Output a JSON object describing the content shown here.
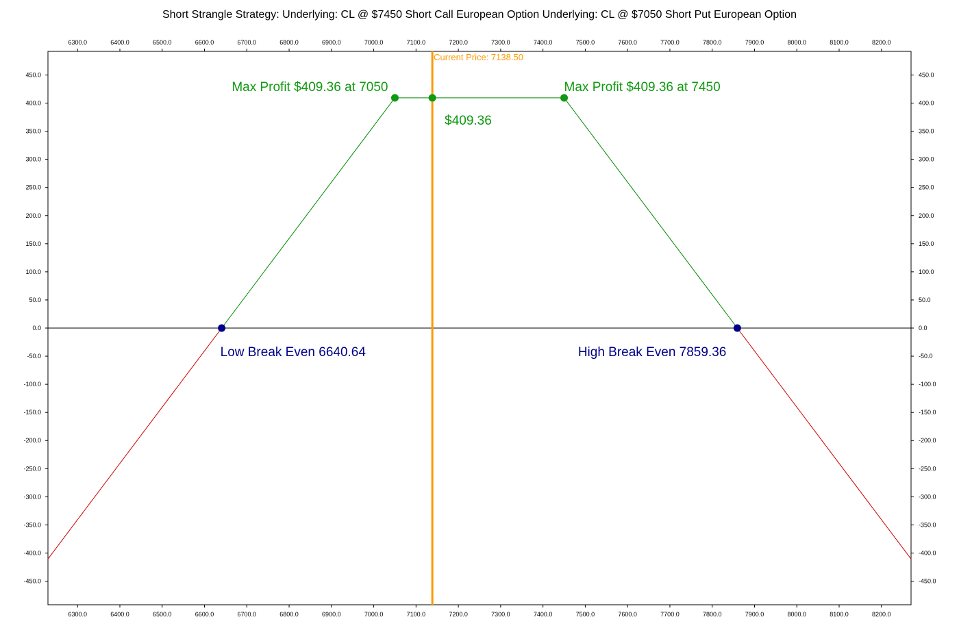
{
  "chart_data": {
    "type": "line",
    "title": "Short Strangle Strategy:   Underlying: CL @ $7450 Short Call European Option  Underlying: CL @ $7050 Short Put European Option",
    "xlabel": "",
    "ylabel": "",
    "xlim": [
      6230,
      8270
    ],
    "ylim": [
      -492,
      492
    ],
    "x_ticks": [
      6300,
      6400,
      6500,
      6600,
      6700,
      6800,
      6900,
      7000,
      7100,
      7200,
      7300,
      7400,
      7500,
      7600,
      7700,
      7800,
      7900,
      8000,
      8100,
      8200
    ],
    "x_tick_labels": [
      "6300.0",
      "6400.0",
      "6500.0",
      "6600.0",
      "6700.0",
      "6800.0",
      "6900.0",
      "7000.0",
      "7100.0",
      "7200.0",
      "7300.0",
      "7400.0",
      "7500.0",
      "7600.0",
      "7700.0",
      "7800.0",
      "7900.0",
      "8000.0",
      "8100.0",
      "8200.0"
    ],
    "y_ticks": [
      450,
      400,
      350,
      300,
      250,
      200,
      150,
      100,
      50,
      0,
      -50,
      -100,
      -150,
      -200,
      -250,
      -300,
      -350,
      -400,
      -450
    ],
    "y_tick_labels": [
      "450.0",
      "400.0",
      "350.0",
      "300.0",
      "250.0",
      "200.0",
      "150.0",
      "100.0",
      "50.0",
      "0.0",
      "-50.0",
      "-100.0",
      "-150.0",
      "-200.0",
      "-250.0",
      "-300.0",
      "-350.0",
      "-400.0",
      "-450.0"
    ],
    "grid": false,
    "series": [
      {
        "color": "#cc0000",
        "points": [
          [
            6230,
            -410.64
          ],
          [
            6640.64,
            0
          ]
        ]
      },
      {
        "color": "#008800",
        "points": [
          [
            6640.64,
            0
          ],
          [
            7050,
            409.36
          ],
          [
            7450,
            409.36
          ],
          [
            7859.36,
            0
          ]
        ]
      },
      {
        "color": "#cc0000",
        "points": [
          [
            7859.36,
            0
          ],
          [
            8270,
            -410.64
          ]
        ]
      }
    ],
    "markers": [
      {
        "x": 7050,
        "y": 409.36,
        "color": "#119911"
      },
      {
        "x": 7138.5,
        "y": 409.36,
        "color": "#119911"
      },
      {
        "x": 7450,
        "y": 409.36,
        "color": "#119911"
      },
      {
        "x": 6640.64,
        "y": 0,
        "color": "#000088"
      },
      {
        "x": 7859.36,
        "y": 0,
        "color": "#000088"
      }
    ],
    "current_price": {
      "value": 7138.5,
      "label": "Current Price: 7138.50",
      "color": "#ff9900"
    },
    "annotations": [
      {
        "text": "Max Profit $409.36 at 7050",
        "color": "#119911",
        "anchor": "left-max"
      },
      {
        "text": "Max Profit $409.36 at 7450",
        "color": "#119911",
        "anchor": "right-max"
      },
      {
        "text": "$409.36",
        "color": "#119911",
        "anchor": "current"
      },
      {
        "text": "Low Break Even  6640.64",
        "color": "#000088",
        "anchor": "low-be"
      },
      {
        "text": "High Break Even  7859.36",
        "color": "#000088",
        "anchor": "high-be"
      }
    ]
  }
}
